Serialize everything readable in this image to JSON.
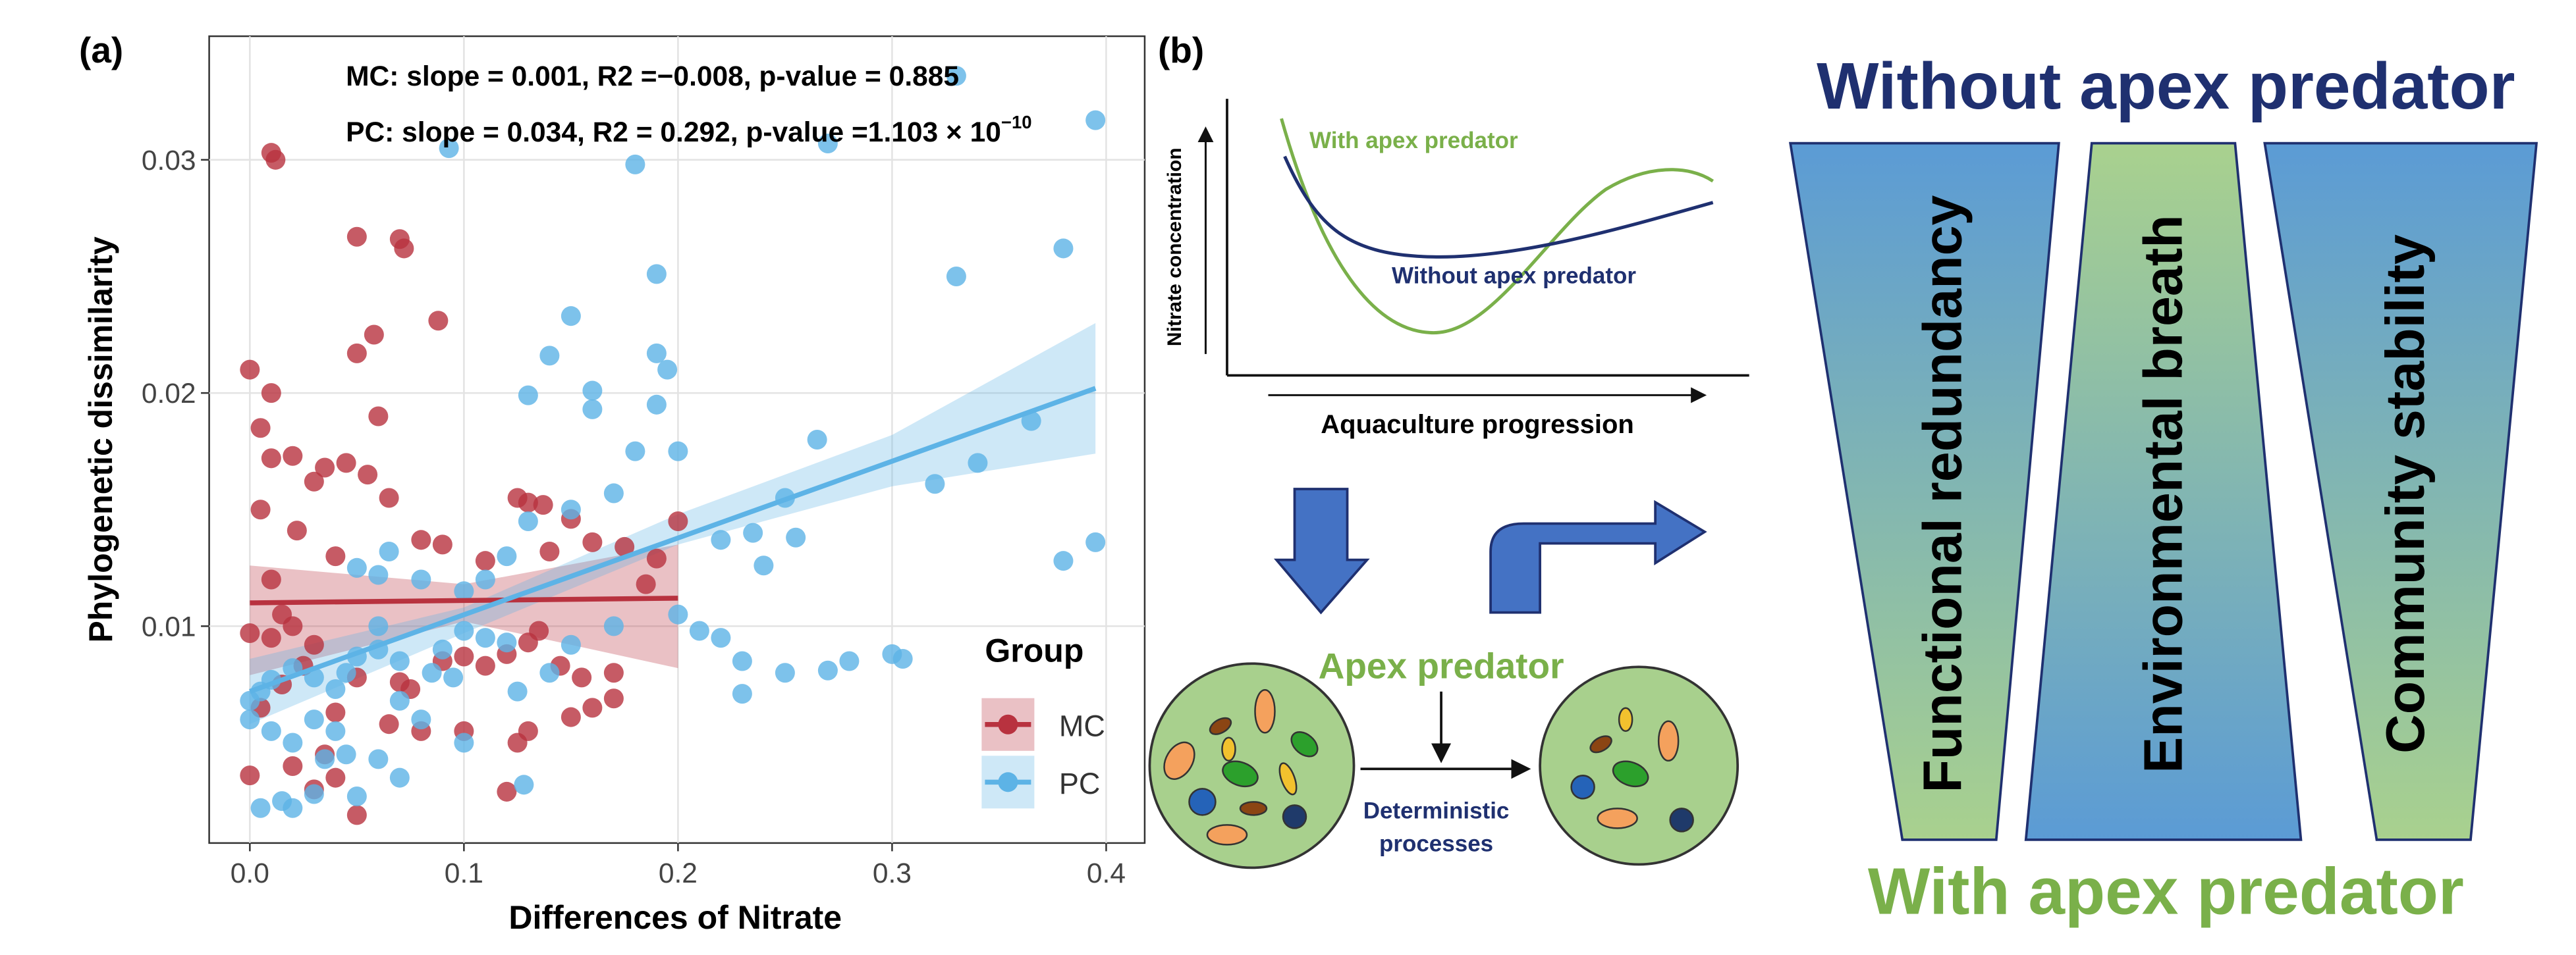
{
  "chart_data": {
    "type": "scatter",
    "panel_label": "(a)",
    "annotations": [
      "MC: slope = 0.001, R2 =−0.008, p-value = 0.885",
      "PC: slope = 0.034, R2 = 0.292, p-value =1.103 × 10"
    ],
    "annotation_exponent": "−10",
    "xlabel": "Differences of Nitrate",
    "ylabel": "Phylogenetic dissimilarity",
    "xlim": [
      -0.019,
      0.418
    ],
    "ylim": [
      0.0007,
      0.0353
    ],
    "xticks": [
      {
        "value": 0,
        "label": "0.0"
      },
      0.1,
      0.2,
      0.3,
      0.4
    ],
    "yticks": [
      0.01,
      0.02,
      0.03
    ],
    "grid": true,
    "legend": {
      "title": "Group",
      "position": "bottom-right"
    },
    "series": [
      {
        "name": "MC",
        "color": "#b8323f",
        "x": [
          0.01,
          0.012,
          0.0,
          0.01,
          0.005,
          0.02,
          0.01,
          0.035,
          0.045,
          0.05,
          0.07,
          0.072,
          0.058,
          0.05,
          0.06,
          0.088,
          0.055,
          0.065,
          0.022,
          0.03,
          0.005,
          0.01,
          0.02,
          0.04,
          0.08,
          0.09,
          0.11,
          0.125,
          0.13,
          0.137,
          0.14,
          0.15,
          0.16,
          0.175,
          0.19,
          0.185,
          0.2,
          0.135,
          0.11,
          0.09,
          0.1,
          0.12,
          0.13,
          0.145,
          0.155,
          0.17,
          0.16,
          0.15,
          0.17,
          0.125,
          0.13,
          0.12,
          0.1,
          0.08,
          0.065,
          0.07,
          0.075,
          0.05,
          0.04,
          0.035,
          0.04,
          0.02,
          0.03,
          0.05,
          0.0,
          0.005,
          0.01,
          0.015,
          0.025,
          0.03,
          0.015,
          0.0
        ],
        "y": [
          0.0303,
          0.03,
          0.021,
          0.02,
          0.0185,
          0.0173,
          0.0172,
          0.0168,
          0.017,
          0.0267,
          0.0266,
          0.0262,
          0.0225,
          0.0217,
          0.019,
          0.0231,
          0.0165,
          0.0155,
          0.0141,
          0.0162,
          0.015,
          0.012,
          0.01,
          0.013,
          0.0137,
          0.0135,
          0.0128,
          0.0155,
          0.0153,
          0.0152,
          0.0132,
          0.0146,
          0.0136,
          0.0134,
          0.0129,
          0.0118,
          0.0145,
          0.0098,
          0.0083,
          0.0085,
          0.0087,
          0.0088,
          0.0093,
          0.0083,
          0.0078,
          0.008,
          0.0065,
          0.0061,
          0.0069,
          0.005,
          0.0055,
          0.0029,
          0.0055,
          0.0055,
          0.0058,
          0.0076,
          0.0073,
          0.0078,
          0.0063,
          0.0045,
          0.0035,
          0.004,
          0.003,
          0.0019,
          0.0036,
          0.0065,
          0.0095,
          0.0105,
          0.0083,
          0.0092,
          0.0075,
          0.0097
        ],
        "fit": {
          "x": [
            0,
            0.2
          ],
          "y": [
            0.011,
            0.0112
          ]
        },
        "band": {
          "x": [
            0,
            0.1,
            0.2
          ],
          "lower": [
            0.0079,
            0.0102,
            0.0082
          ],
          "upper": [
            0.0126,
            0.0118,
            0.0135
          ]
        }
      },
      {
        "name": "PC",
        "color": "#5db3e6",
        "x": [
          0.395,
          0.33,
          0.27,
          0.18,
          0.093,
          0.38,
          0.33,
          0.19,
          0.15,
          0.19,
          0.195,
          0.14,
          0.13,
          0.16,
          0.16,
          0.19,
          0.365,
          0.34,
          0.32,
          0.265,
          0.25,
          0.255,
          0.235,
          0.24,
          0.22,
          0.18,
          0.2,
          0.17,
          0.15,
          0.13,
          0.12,
          0.11,
          0.1,
          0.08,
          0.06,
          0.065,
          0.05,
          0.395,
          0.38,
          0.3,
          0.305,
          0.28,
          0.27,
          0.25,
          0.23,
          0.21,
          0.22,
          0.23,
          0.2,
          0.17,
          0.15,
          0.14,
          0.125,
          0.12,
          0.1,
          0.09,
          0.085,
          0.07,
          0.06,
          0.05,
          0.045,
          0.04,
          0.03,
          0.02,
          0.01,
          0.005,
          0.0,
          0.0,
          0.01,
          0.02,
          0.03,
          0.04,
          0.06,
          0.07,
          0.05,
          0.03,
          0.02,
          0.015,
          0.005,
          0.035,
          0.045,
          0.08,
          0.1,
          0.128,
          0.06,
          0.11,
          0.095,
          0.07
        ],
        "y": [
          0.0317,
          0.0336,
          0.0307,
          0.0298,
          0.0305,
          0.0262,
          0.025,
          0.0251,
          0.0233,
          0.0217,
          0.021,
          0.0216,
          0.0199,
          0.0201,
          0.0193,
          0.0195,
          0.0188,
          0.017,
          0.0161,
          0.018,
          0.0155,
          0.0138,
          0.014,
          0.0126,
          0.0137,
          0.0175,
          0.0175,
          0.0157,
          0.015,
          0.0145,
          0.013,
          0.012,
          0.0115,
          0.012,
          0.0122,
          0.0132,
          0.0125,
          0.0136,
          0.0128,
          0.0088,
          0.0086,
          0.0085,
          0.0081,
          0.008,
          0.0085,
          0.0098,
          0.0095,
          0.0071,
          0.0105,
          0.01,
          0.0092,
          0.008,
          0.0072,
          0.0093,
          0.0098,
          0.009,
          0.008,
          0.0085,
          0.009,
          0.0087,
          0.008,
          0.0073,
          0.0078,
          0.0082,
          0.0077,
          0.0072,
          0.0068,
          0.006,
          0.0055,
          0.005,
          0.006,
          0.0055,
          0.0043,
          0.0035,
          0.0027,
          0.0028,
          0.0022,
          0.0025,
          0.0022,
          0.0043,
          0.0045,
          0.006,
          0.005,
          0.0032,
          0.01,
          0.0095,
          0.0078,
          0.0068
        ],
        "fit": {
          "x": [
            0,
            0.395
          ],
          "y": [
            0.0072,
            0.0202
          ]
        },
        "band": {
          "x": [
            0,
            0.1,
            0.2,
            0.3,
            0.395
          ],
          "lower": [
            0.0058,
            0.0097,
            0.0135,
            0.016,
            0.0174
          ],
          "upper": [
            0.0086,
            0.0108,
            0.0148,
            0.0182,
            0.023
          ]
        }
      }
    ]
  },
  "diagram": {
    "panel_label": "(b)",
    "curve_labels": [
      "With apex predator",
      "Without apex predator"
    ],
    "y_axis_label": "Nitrate concentration",
    "x_axis_label": "Aquaculture progression",
    "predator_label": "Apex predator",
    "process_label": [
      "Deterministic",
      "processes"
    ],
    "top_title": "Without apex predator",
    "bottom_title": "With apex predator",
    "bars": [
      "Functional redundancy",
      "Environmental breath",
      "Community stability"
    ]
  }
}
